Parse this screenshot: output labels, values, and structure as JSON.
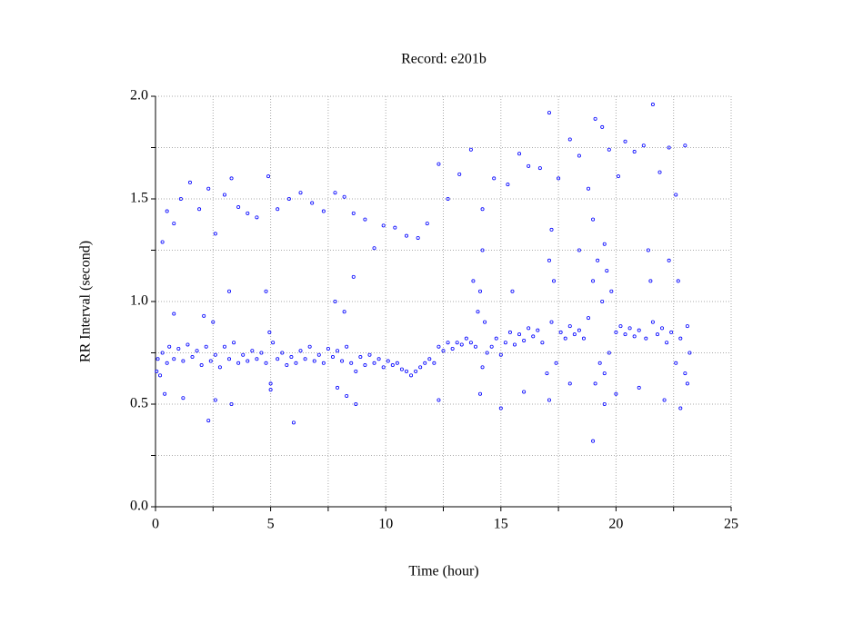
{
  "chart_data": {
    "type": "scatter",
    "title": "Record:  e201b",
    "x_label": "Time (hour)",
    "y_label": "RR Interval (second)",
    "xlim": [
      0,
      25
    ],
    "xticks": [
      0,
      5,
      10,
      15,
      20,
      25
    ],
    "xminorticks": [
      2.5,
      7.5,
      12.5,
      17.5,
      22.5
    ],
    "ylim": [
      0,
      2
    ],
    "yticks": [
      {
        "value": 0,
        "label": "0.0"
      },
      {
        "value": 0.5,
        "label": "0.5"
      },
      {
        "value": 1,
        "label": "1.0"
      },
      {
        "value": 1.5,
        "label": "1.5"
      },
      {
        "value": 2,
        "label": "2.0"
      }
    ],
    "yminorticks": [
      0.25,
      0.75,
      1.25,
      1.75
    ],
    "grid": true,
    "color": "#0000ff",
    "x": [
      0.05,
      0.1,
      0.2,
      0.3,
      0.5,
      0.6,
      0.8,
      1.0,
      1.2,
      1.4,
      1.6,
      1.8,
      2.0,
      2.2,
      2.4,
      2.6,
      2.8,
      3.0,
      3.2,
      3.4,
      3.6,
      3.8,
      4.0,
      4.2,
      4.4,
      4.6,
      4.8,
      4.95,
      5.0,
      5.1,
      5.3,
      5.5,
      5.7,
      5.9,
      6.1,
      6.3,
      6.5,
      6.7,
      6.9,
      7.1,
      7.3,
      7.5,
      7.7,
      7.9,
      8.1,
      8.3,
      8.5,
      8.7,
      8.9,
      9.1,
      9.3,
      9.5,
      9.7,
      9.9,
      10.1,
      10.3,
      10.5,
      10.7,
      10.9,
      11.1,
      11.3,
      11.5,
      11.7,
      11.9,
      12.1,
      12.3,
      12.5,
      12.7,
      12.9,
      13.1,
      13.3,
      13.5,
      13.7,
      13.9,
      14.0,
      14.1,
      14.2,
      14.3,
      14.4,
      14.6,
      14.8,
      15.0,
      15.2,
      15.4,
      15.6,
      15.8,
      16.0,
      16.2,
      16.4,
      16.6,
      16.8,
      17.0,
      17.1,
      17.2,
      17.3,
      17.4,
      17.6,
      17.8,
      18.0,
      18.2,
      18.4,
      18.6,
      18.8,
      19.0,
      19.1,
      19.2,
      19.3,
      19.4,
      19.5,
      19.6,
      19.7,
      19.8,
      20.0,
      20.2,
      20.4,
      20.6,
      20.8,
      21.0,
      21.3,
      21.5,
      21.6,
      21.8,
      22.0,
      22.2,
      22.4,
      22.6,
      22.8,
      23.0,
      23.1,
      23.2,
      0.3,
      0.5,
      0.8,
      1.1,
      1.5,
      1.9,
      2.3,
      2.6,
      3.0,
      3.3,
      3.6,
      4.0,
      4.4,
      4.9,
      5.3,
      5.8,
      6.3,
      6.8,
      7.3,
      7.8,
      8.2,
      8.6,
      9.1,
      9.5,
      9.9,
      10.4,
      10.9,
      11.4,
      11.8,
      12.3,
      12.7,
      13.2,
      13.7,
      14.2,
      14.7,
      15.3,
      15.8,
      16.2,
      16.7,
      17.1,
      17.5,
      18.0,
      18.4,
      18.8,
      19.1,
      19.4,
      19.7,
      20.1,
      20.4,
      20.8,
      21.2,
      21.6,
      21.9,
      22.3,
      22.6,
      23.0,
      0.4,
      1.2,
      2.3,
      2.6,
      3.3,
      5.0,
      6.0,
      7.9,
      8.3,
      8.7,
      12.3,
      14.1,
      15.0,
      16.0,
      17.1,
      18.0,
      19.0,
      19.5,
      20.0,
      21.0,
      22.1,
      22.8,
      23.1,
      0.8,
      2.1,
      2.5,
      3.2,
      4.8,
      7.8,
      8.2,
      8.6,
      13.8,
      14.2,
      15.5,
      17.2,
      18.4,
      19.0,
      19.5,
      21.4,
      22.3,
      22.7
    ],
    "values": [
      0.66,
      0.72,
      0.64,
      0.75,
      0.7,
      0.78,
      0.72,
      0.77,
      0.71,
      0.79,
      0.73,
      0.76,
      0.69,
      0.78,
      0.71,
      0.74,
      0.68,
      0.78,
      0.72,
      0.8,
      0.7,
      0.74,
      0.71,
      0.76,
      0.72,
      0.75,
      0.7,
      0.85,
      0.6,
      0.8,
      0.72,
      0.75,
      0.69,
      0.73,
      0.7,
      0.76,
      0.72,
      0.78,
      0.71,
      0.74,
      0.7,
      0.77,
      0.73,
      0.76,
      0.71,
      0.78,
      0.7,
      0.66,
      0.73,
      0.69,
      0.74,
      0.7,
      0.72,
      0.68,
      0.71,
      0.69,
      0.7,
      0.67,
      0.66,
      0.64,
      0.66,
      0.68,
      0.7,
      0.72,
      0.7,
      0.78,
      0.76,
      0.8,
      0.77,
      0.8,
      0.79,
      0.82,
      0.8,
      0.78,
      0.95,
      1.05,
      0.68,
      0.9,
      0.75,
      0.78,
      0.82,
      0.74,
      0.8,
      0.85,
      0.79,
      0.84,
      0.81,
      0.87,
      0.83,
      0.86,
      0.8,
      0.65,
      1.2,
      0.9,
      1.1,
      0.7,
      0.85,
      0.82,
      0.88,
      0.84,
      0.86,
      0.82,
      0.92,
      1.1,
      0.6,
      1.2,
      0.7,
      1.0,
      0.65,
      1.15,
      0.75,
      1.05,
      0.85,
      0.88,
      0.84,
      0.87,
      0.83,
      0.86,
      0.82,
      1.1,
      0.9,
      0.84,
      0.87,
      0.8,
      0.85,
      0.7,
      0.82,
      0.65,
      0.88,
      0.75,
      1.29,
      1.44,
      1.38,
      1.5,
      1.58,
      1.45,
      1.55,
      1.33,
      1.52,
      1.6,
      1.46,
      1.43,
      1.41,
      1.61,
      1.45,
      1.5,
      1.53,
      1.48,
      1.44,
      1.53,
      1.51,
      1.43,
      1.4,
      1.26,
      1.37,
      1.36,
      1.32,
      1.31,
      1.38,
      1.67,
      1.5,
      1.62,
      1.74,
      1.45,
      1.6,
      1.57,
      1.72,
      1.66,
      1.65,
      1.92,
      1.6,
      1.79,
      1.71,
      1.55,
      1.89,
      1.85,
      1.74,
      1.61,
      1.78,
      1.73,
      1.76,
      1.96,
      1.63,
      1.75,
      1.52,
      1.76,
      0.55,
      0.53,
      0.42,
      0.52,
      0.5,
      0.57,
      0.41,
      0.58,
      0.54,
      0.5,
      0.52,
      0.55,
      0.48,
      0.56,
      0.52,
      0.6,
      0.32,
      0.5,
      0.55,
      0.58,
      0.52,
      0.48,
      0.6,
      0.94,
      0.93,
      0.9,
      1.05,
      1.05,
      1.0,
      0.95,
      1.12,
      1.1,
      1.25,
      1.05,
      1.35,
      1.25,
      1.4,
      1.28,
      1.25,
      1.2,
      1.1
    ]
  }
}
